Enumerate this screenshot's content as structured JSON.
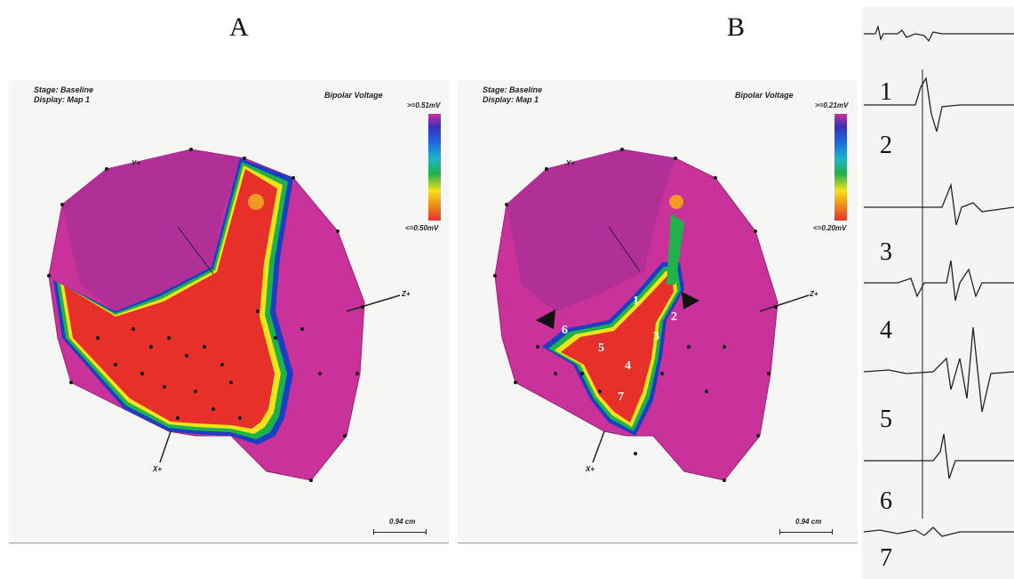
{
  "figure": {
    "panel_a_label": "A",
    "panel_b_label": "B"
  },
  "panel_a": {
    "stage": "Stage: Baseline",
    "display": "Display: Map 1",
    "title": "Bipolar Voltage",
    "legend_max": ">=0.51mV",
    "legend_min": "<=0.50mV",
    "axis_y": "Y+",
    "axis_z": "Z+",
    "axis_x": "X+",
    "scale_label": "0.94 cm"
  },
  "panel_b": {
    "stage": "Stage: Baseline",
    "display": "Display: Map 1",
    "title": "Bipolar Voltage",
    "legend_max": ">=0.21mV",
    "legend_min": "<=0.20mV",
    "axis_y": "Y+",
    "axis_z": "Z+",
    "axis_x": "X+",
    "scale_label": "0.94 cm",
    "site_labels": [
      "1",
      "2",
      "3",
      "4",
      "5",
      "6",
      "7"
    ]
  },
  "electrograms": {
    "trace_labels": [
      "1",
      "2",
      "3",
      "4",
      "5",
      "6",
      "7"
    ]
  },
  "colors": {
    "scar_red": "#e8302a",
    "healthy_magenta": "#c8329a",
    "border_yellow": "#f4e21a",
    "border_green": "#1fb14a",
    "border_blue": "#1a3fc4"
  }
}
